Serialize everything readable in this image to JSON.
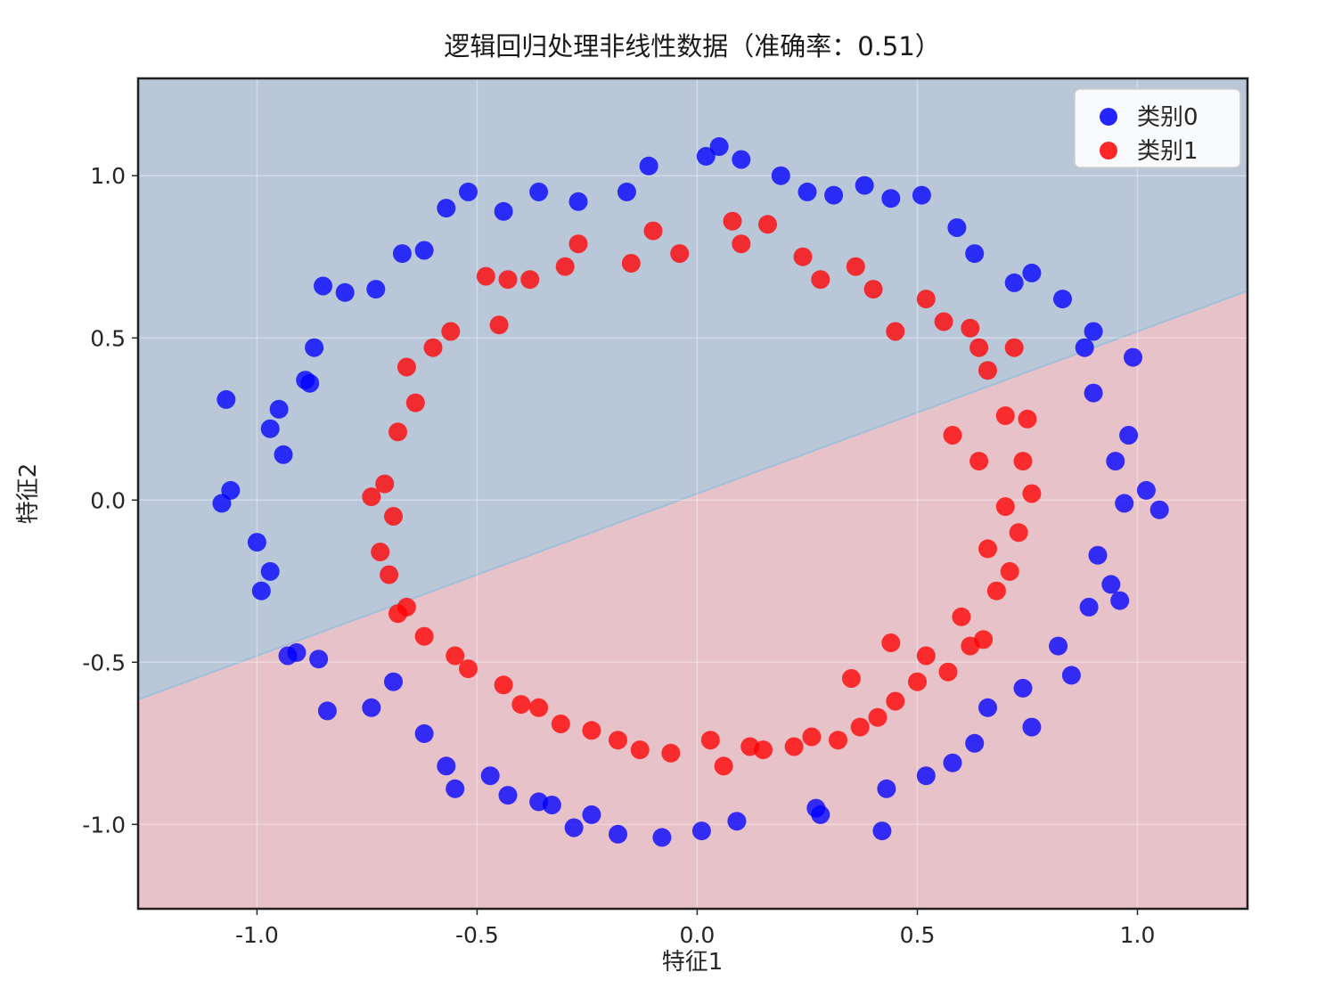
{
  "chart_data": {
    "type": "scatter",
    "title": "逻辑回归处理非线性数据（准确率：0.51）",
    "xlabel": "特征1",
    "ylabel": "特征2",
    "accuracy": 0.51,
    "xlim": [
      -1.27,
      1.25
    ],
    "ylim": [
      -1.26,
      1.3
    ],
    "xticks": [
      -1.0,
      -0.5,
      0.0,
      0.5,
      1.0
    ],
    "yticks": [
      -1.0,
      -0.5,
      0.0,
      0.5,
      1.0
    ],
    "grid": true,
    "legend_position": "upper right",
    "decision_boundary": {
      "type": "linear",
      "slope": 0.5,
      "intercept": 0.02,
      "region_above_color": "#b9c7d9",
      "region_below_color": "#e7c2c9",
      "boundary_line_color": "#9fc0d8"
    },
    "series": [
      {
        "name": "类别0",
        "color": "#0000ff",
        "points": [
          [
            1.02,
            0.03
          ],
          [
            0.97,
            -0.01
          ],
          [
            0.95,
            0.12
          ],
          [
            0.98,
            0.2
          ],
          [
            0.9,
            0.33
          ],
          [
            0.99,
            0.44
          ],
          [
            0.9,
            0.52
          ],
          [
            0.88,
            0.47
          ],
          [
            0.83,
            0.62
          ],
          [
            0.76,
            0.7
          ],
          [
            0.72,
            0.67
          ],
          [
            0.63,
            0.76
          ],
          [
            0.59,
            0.84
          ],
          [
            0.51,
            0.94
          ],
          [
            0.44,
            0.93
          ],
          [
            0.38,
            0.97
          ],
          [
            0.31,
            0.94
          ],
          [
            0.25,
            0.95
          ],
          [
            0.19,
            1.0
          ],
          [
            0.1,
            1.05
          ],
          [
            0.05,
            1.09
          ],
          [
            0.02,
            1.06
          ],
          [
            -0.11,
            1.03
          ],
          [
            -0.16,
            0.95
          ],
          [
            -0.27,
            0.92
          ],
          [
            -0.36,
            0.95
          ],
          [
            -0.44,
            0.89
          ],
          [
            -0.52,
            0.95
          ],
          [
            -0.57,
            0.9
          ],
          [
            -0.62,
            0.77
          ],
          [
            -0.67,
            0.76
          ],
          [
            -0.73,
            0.65
          ],
          [
            -0.8,
            0.64
          ],
          [
            -0.85,
            0.66
          ],
          [
            -0.87,
            0.47
          ],
          [
            -0.89,
            0.37
          ],
          [
            -0.88,
            0.36
          ],
          [
            -0.95,
            0.28
          ],
          [
            -0.97,
            0.22
          ],
          [
            -1.07,
            0.31
          ],
          [
            -0.94,
            0.14
          ],
          [
            -1.06,
            0.03
          ],
          [
            -1.08,
            -0.01
          ],
          [
            -1.0,
            -0.13
          ],
          [
            -0.97,
            -0.22
          ],
          [
            -0.99,
            -0.28
          ],
          [
            -0.93,
            -0.48
          ],
          [
            -0.91,
            -0.47
          ],
          [
            -0.86,
            -0.49
          ],
          [
            -0.84,
            -0.65
          ],
          [
            -0.74,
            -0.64
          ],
          [
            -0.69,
            -0.56
          ],
          [
            -0.62,
            -0.72
          ],
          [
            -0.57,
            -0.82
          ],
          [
            -0.55,
            -0.89
          ],
          [
            -0.47,
            -0.85
          ],
          [
            -0.43,
            -0.91
          ],
          [
            -0.36,
            -0.93
          ],
          [
            -0.33,
            -0.94
          ],
          [
            -0.28,
            -1.01
          ],
          [
            -0.24,
            -0.97
          ],
          [
            -0.18,
            -1.03
          ],
          [
            -0.08,
            -1.04
          ],
          [
            0.01,
            -1.02
          ],
          [
            0.09,
            -0.99
          ],
          [
            0.27,
            -0.95
          ],
          [
            0.28,
            -0.97
          ],
          [
            0.42,
            -1.02
          ],
          [
            0.43,
            -0.89
          ],
          [
            0.52,
            -0.85
          ],
          [
            0.58,
            -0.81
          ],
          [
            0.63,
            -0.75
          ],
          [
            0.66,
            -0.64
          ],
          [
            0.76,
            -0.7
          ],
          [
            0.74,
            -0.58
          ],
          [
            0.85,
            -0.54
          ],
          [
            0.82,
            -0.45
          ],
          [
            0.89,
            -0.33
          ],
          [
            0.96,
            -0.31
          ],
          [
            0.94,
            -0.26
          ],
          [
            0.91,
            -0.17
          ],
          [
            1.05,
            -0.03
          ]
        ]
      },
      {
        "name": "类别1",
        "color": "#ff0000",
        "points": [
          [
            0.76,
            0.02
          ],
          [
            0.74,
            0.12
          ],
          [
            0.64,
            0.12
          ],
          [
            0.7,
            0.26
          ],
          [
            0.75,
            0.25
          ],
          [
            0.66,
            0.4
          ],
          [
            0.72,
            0.47
          ],
          [
            0.64,
            0.47
          ],
          [
            0.62,
            0.53
          ],
          [
            0.56,
            0.55
          ],
          [
            0.52,
            0.62
          ],
          [
            0.45,
            0.52
          ],
          [
            0.4,
            0.65
          ],
          [
            0.36,
            0.72
          ],
          [
            0.28,
            0.68
          ],
          [
            0.24,
            0.75
          ],
          [
            0.16,
            0.85
          ],
          [
            0.1,
            0.79
          ],
          [
            0.08,
            0.86
          ],
          [
            -0.04,
            0.76
          ],
          [
            -0.1,
            0.83
          ],
          [
            -0.15,
            0.73
          ],
          [
            -0.27,
            0.79
          ],
          [
            -0.3,
            0.72
          ],
          [
            -0.38,
            0.68
          ],
          [
            -0.43,
            0.68
          ],
          [
            -0.48,
            0.69
          ],
          [
            -0.45,
            0.54
          ],
          [
            -0.56,
            0.52
          ],
          [
            -0.6,
            0.47
          ],
          [
            -0.66,
            0.41
          ],
          [
            -0.64,
            0.3
          ],
          [
            -0.68,
            0.21
          ],
          [
            -0.71,
            0.05
          ],
          [
            -0.74,
            0.01
          ],
          [
            -0.69,
            -0.05
          ],
          [
            -0.72,
            -0.16
          ],
          [
            -0.7,
            -0.23
          ],
          [
            -0.66,
            -0.33
          ],
          [
            -0.68,
            -0.35
          ],
          [
            -0.62,
            -0.42
          ],
          [
            -0.55,
            -0.48
          ],
          [
            -0.52,
            -0.52
          ],
          [
            -0.44,
            -0.57
          ],
          [
            -0.4,
            -0.63
          ],
          [
            -0.36,
            -0.64
          ],
          [
            -0.31,
            -0.69
          ],
          [
            -0.24,
            -0.71
          ],
          [
            -0.18,
            -0.74
          ],
          [
            -0.13,
            -0.77
          ],
          [
            -0.06,
            -0.78
          ],
          [
            0.03,
            -0.74
          ],
          [
            0.06,
            -0.82
          ],
          [
            0.12,
            -0.76
          ],
          [
            0.15,
            -0.77
          ],
          [
            0.22,
            -0.76
          ],
          [
            0.26,
            -0.73
          ],
          [
            0.32,
            -0.74
          ],
          [
            0.37,
            -0.7
          ],
          [
            0.41,
            -0.67
          ],
          [
            0.45,
            -0.62
          ],
          [
            0.5,
            -0.56
          ],
          [
            0.52,
            -0.48
          ],
          [
            0.57,
            -0.53
          ],
          [
            0.62,
            -0.45
          ],
          [
            0.65,
            -0.43
          ],
          [
            0.6,
            -0.36
          ],
          [
            0.68,
            -0.28
          ],
          [
            0.71,
            -0.22
          ],
          [
            0.66,
            -0.15
          ],
          [
            0.73,
            -0.1
          ],
          [
            0.7,
            -0.02
          ],
          [
            0.58,
            0.2
          ],
          [
            0.44,
            -0.44
          ],
          [
            0.35,
            -0.55
          ]
        ]
      }
    ]
  }
}
